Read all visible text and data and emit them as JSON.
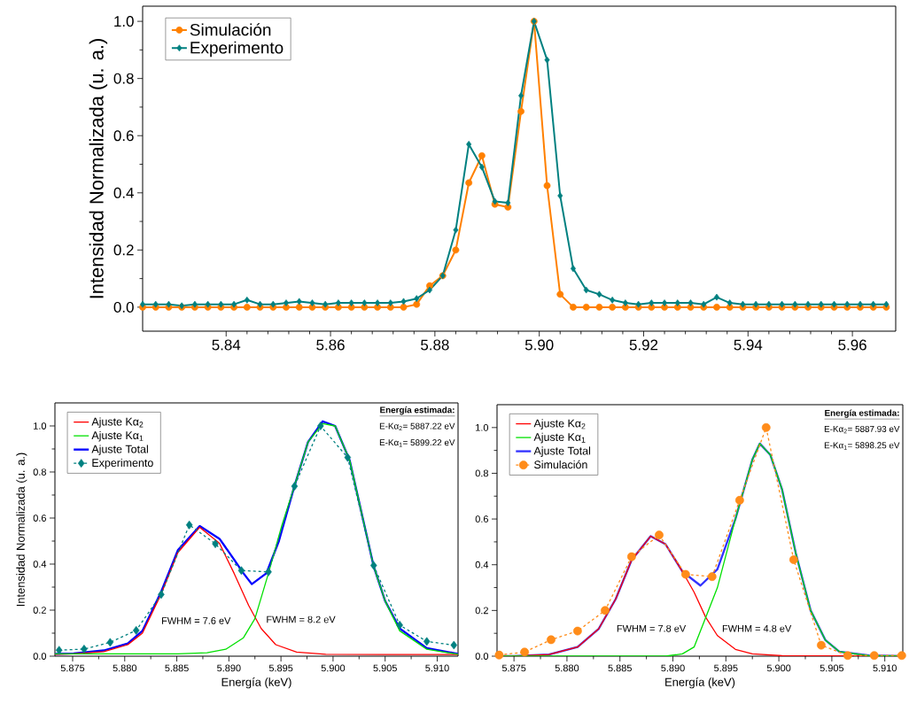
{
  "chart_data": [
    {
      "type": "line",
      "ylabel": "Intensidad Normalizada (u. a.)",
      "legend": "top left",
      "xlim": [
        5.824,
        5.9683
      ],
      "ylim": [
        -0.084,
        1.053
      ],
      "xticks": [
        {
          "value": 5.84,
          "label": "5.84"
        },
        {
          "value": 5.86,
          "label": "5.86"
        },
        {
          "value": 5.88,
          "label": "5.88"
        },
        {
          "value": 5.9,
          "label": "5.90"
        },
        {
          "value": 5.92,
          "label": "5.92"
        },
        {
          "value": 5.94,
          "label": "5.94"
        },
        {
          "value": 5.96,
          "label": "5.96"
        }
      ],
      "yticks": [
        {
          "value": 0,
          "label": "0.0"
        },
        {
          "value": 0.2,
          "label": "0.2"
        },
        {
          "value": 0.4,
          "label": "0.4"
        },
        {
          "value": 0.6,
          "label": "0.6"
        },
        {
          "value": 0.8,
          "label": "0.8"
        },
        {
          "value": 1.0,
          "label": "1.0"
        }
      ],
      "x": [
        5.824,
        5.8265,
        5.829,
        5.8315,
        5.834,
        5.8365,
        5.839,
        5.8415,
        5.844,
        5.8465,
        5.849,
        5.8515,
        5.854,
        5.8565,
        5.859,
        5.8615,
        5.864,
        5.8665,
        5.869,
        5.8715,
        5.874,
        5.8765,
        5.879,
        5.8815,
        5.884,
        5.8865,
        5.889,
        5.8915,
        5.894,
        5.8965,
        5.899,
        5.9015,
        5.904,
        5.9065,
        5.909,
        5.9115,
        5.914,
        5.9165,
        5.919,
        5.9215,
        5.924,
        5.9265,
        5.929,
        5.9315,
        5.934,
        5.9365,
        5.939,
        5.9415,
        5.944,
        5.9465,
        5.949,
        5.9515,
        5.954,
        5.9565,
        5.959,
        5.9615,
        5.964,
        5.9665
      ],
      "series": [
        {
          "name": "Simulación",
          "color": "#ff8000",
          "marker": "circle",
          "line_style": "solid",
          "values": [
            0,
            0,
            0,
            0,
            0,
            0,
            0,
            0,
            0,
            0,
            0,
            0,
            0,
            0,
            0,
            0,
            0,
            0,
            0,
            0,
            0,
            0.01,
            0.075,
            0.11,
            0.2,
            0.435,
            0.53,
            0.36,
            0.35,
            0.685,
            1.0,
            0.425,
            0.045,
            0,
            0,
            0,
            0,
            0,
            0,
            0,
            0,
            0,
            0,
            0,
            0,
            0,
            0,
            0,
            0,
            0,
            0,
            0,
            0,
            0,
            0,
            0,
            0,
            0
          ]
        },
        {
          "name": "Experimento",
          "color": "#008080",
          "marker": "diamond",
          "line_style": "solid",
          "values": [
            0.01,
            0.01,
            0.01,
            0.005,
            0.01,
            0.01,
            0.01,
            0.01,
            0.025,
            0.01,
            0.01,
            0.015,
            0.02,
            0.015,
            0.01,
            0.015,
            0.015,
            0.015,
            0.015,
            0.015,
            0.02,
            0.03,
            0.06,
            0.11,
            0.27,
            0.57,
            0.49,
            0.37,
            0.365,
            0.74,
            1.0,
            0.865,
            0.39,
            0.135,
            0.06,
            0.045,
            0.025,
            0.015,
            0.01,
            0.015,
            0.015,
            0.015,
            0.015,
            0.01,
            0.035,
            0.015,
            0.01,
            0.01,
            0.01,
            0.01,
            0.01,
            0.01,
            0.01,
            0.01,
            0.01,
            0.01,
            0.01,
            0.01
          ]
        }
      ]
    },
    {
      "type": "line",
      "xlabel": "Energía (keV)",
      "ylabel": "Intensidad Normalizada (u. a.)",
      "legend": "top left",
      "xlim": [
        5.8733,
        5.912
      ],
      "ylim": [
        0,
        1.1
      ],
      "xticks": [
        {
          "value": 5.875,
          "label": "5.875"
        },
        {
          "value": 5.88,
          "label": "5.880"
        },
        {
          "value": 5.885,
          "label": "5.885"
        },
        {
          "value": 5.89,
          "label": "5.890"
        },
        {
          "value": 5.895,
          "label": "5.895"
        },
        {
          "value": 5.9,
          "label": "5.900"
        },
        {
          "value": 5.905,
          "label": "5.905"
        },
        {
          "value": 5.91,
          "label": "5.910"
        }
      ],
      "yticks": [
        {
          "value": 0,
          "label": "0.0"
        },
        {
          "value": 0.2,
          "label": "0.2"
        },
        {
          "value": 0.4,
          "label": "0.4"
        },
        {
          "value": 0.6,
          "label": "0.6"
        },
        {
          "value": 0.8,
          "label": "0.8"
        },
        {
          "value": 1.0,
          "label": "1.0"
        }
      ],
      "annotations": [
        "Energía estimada:",
        "E-Kα$_{2}$= 5887.22 eV",
        "E-Kα$_{1}$= 5899.22 eV",
        "FWHM = 7.6 eV",
        "FWHM = 8.2 eV"
      ],
      "series": [
        {
          "name": "Ajuste Kα$_{2}$",
          "color": "#ff0000",
          "marker": "none",
          "line_style": "solid",
          "x": [
            5.8733,
            5.8751,
            5.878,
            5.8803,
            5.8817,
            5.8835,
            5.8851,
            5.8872,
            5.8891,
            5.8905,
            5.8919,
            5.8931,
            5.8945,
            5.8965,
            5.8993,
            5.905,
            5.912
          ],
          "values": [
            0.008,
            0.01,
            0.02,
            0.05,
            0.1,
            0.27,
            0.45,
            0.56,
            0.49,
            0.36,
            0.22,
            0.12,
            0.05,
            0.018,
            0.008,
            0.007,
            0.007
          ]
        },
        {
          "name": "Ajuste Kα$_{1}$",
          "color": "#00e000",
          "marker": "none",
          "line_style": "solid",
          "x": [
            5.8733,
            5.8851,
            5.8879,
            5.8897,
            5.8914,
            5.8925,
            5.8938,
            5.8951,
            5.8963,
            5.8976,
            5.899,
            5.9002,
            5.9016,
            5.9039,
            5.905,
            5.9064,
            5.909,
            5.912
          ],
          "values": [
            0.01,
            0.01,
            0.015,
            0.03,
            0.08,
            0.163,
            0.36,
            0.57,
            0.74,
            0.93,
            1.01,
            1.0,
            0.85,
            0.39,
            0.24,
            0.11,
            0.03,
            0.008
          ]
        },
        {
          "name": "Ajuste Total",
          "color": "#0000ff",
          "marker": "none",
          "line_style": "solid",
          "x": [
            5.8733,
            5.8751,
            5.878,
            5.8803,
            5.8817,
            5.8835,
            5.8851,
            5.8872,
            5.8891,
            5.8905,
            5.8914,
            5.8922,
            5.8936,
            5.8948,
            5.8963,
            5.8976,
            5.899,
            5.9002,
            5.9016,
            5.9039,
            5.905,
            5.9064,
            5.909,
            5.912
          ],
          "values": [
            0.01,
            0.012,
            0.025,
            0.055,
            0.11,
            0.28,
            0.46,
            0.565,
            0.51,
            0.42,
            0.36,
            0.313,
            0.36,
            0.5,
            0.74,
            0.93,
            1.02,
            1.0,
            0.85,
            0.39,
            0.24,
            0.12,
            0.035,
            0.01
          ]
        },
        {
          "name": "Experimento",
          "color": "#008080",
          "marker": "diamond",
          "line_style": "dashed",
          "x": [
            5.8737,
            5.8761,
            5.8786,
            5.8811,
            5.8835,
            5.8862,
            5.8887,
            5.8912,
            5.8938,
            5.8963,
            5.8988,
            5.9014,
            5.9039,
            5.9064,
            5.909,
            5.9116
          ],
          "values": [
            0.026,
            0.031,
            0.06,
            0.112,
            0.268,
            0.57,
            0.488,
            0.372,
            0.366,
            0.738,
            1.0,
            0.863,
            0.394,
            0.135,
            0.064,
            0.048
          ]
        }
      ]
    },
    {
      "type": "line",
      "xlabel": "Energía (keV)",
      "legend": "top left",
      "xlim": [
        5.8734,
        5.9117
      ],
      "ylim": [
        0,
        1.1
      ],
      "xticks": [
        {
          "value": 5.875,
          "label": "5.875"
        },
        {
          "value": 5.88,
          "label": "5.880"
        },
        {
          "value": 5.885,
          "label": "5.885"
        },
        {
          "value": 5.89,
          "label": "5.890"
        },
        {
          "value": 5.895,
          "label": "5.895"
        },
        {
          "value": 5.9,
          "label": "5.900"
        },
        {
          "value": 5.905,
          "label": "5.905"
        },
        {
          "value": 5.91,
          "label": "5.910"
        }
      ],
      "yticks": [
        {
          "value": 0,
          "label": "0.0"
        },
        {
          "value": 0.2,
          "label": "0.2"
        },
        {
          "value": 0.4,
          "label": "0.4"
        },
        {
          "value": 0.6,
          "label": "0.6"
        },
        {
          "value": 0.8,
          "label": "0.8"
        },
        {
          "value": 1.0,
          "label": "1.0"
        }
      ],
      "annotations": [
        "Energía estimada:",
        "E-Kα$_{2}$= 5887.93 eV",
        "E-Kα$_{1}$= 5898.25 eV",
        "FWHM = 7.8 eV",
        "FWHM = 4.8 eV"
      ],
      "series": [
        {
          "name": "Ajuste Kα$_{2}$",
          "color": "#ff0000",
          "marker": "none",
          "line_style": "solid",
          "x": [
            5.8734,
            5.875,
            5.8783,
            5.881,
            5.883,
            5.8846,
            5.8861,
            5.8879,
            5.8893,
            5.8909,
            5.892,
            5.8931,
            5.8942,
            5.8959,
            5.8975,
            5.9003,
            5.9117
          ],
          "values": [
            0,
            0,
            0.007,
            0.04,
            0.12,
            0.25,
            0.42,
            0.525,
            0.49,
            0.37,
            0.28,
            0.17,
            0.09,
            0.03,
            0.01,
            0.002,
            0
          ]
        },
        {
          "name": "Ajuste Kα$_{1}$",
          "color": "#00e000",
          "marker": "none",
          "line_style": "solid",
          "x": [
            5.8734,
            5.8893,
            5.8909,
            5.892,
            5.893,
            5.8942,
            5.8959,
            5.8975,
            5.8982,
            5.8992,
            5.9003,
            5.9016,
            5.903,
            5.9044,
            5.9057,
            5.9085,
            5.9117
          ],
          "values": [
            0,
            0,
            0.01,
            0.04,
            0.158,
            0.3,
            0.6,
            0.86,
            0.93,
            0.88,
            0.73,
            0.45,
            0.2,
            0.07,
            0.02,
            0.002,
            0
          ]
        },
        {
          "name": "Ajuste Total",
          "color": "#3333ff",
          "marker": "none",
          "line_style": "solid",
          "x": [
            5.8734,
            5.875,
            5.8783,
            5.881,
            5.883,
            5.8846,
            5.8861,
            5.8879,
            5.8893,
            5.8909,
            5.8926,
            5.8942,
            5.8959,
            5.8975,
            5.8982,
            5.8992,
            5.9003,
            5.9016,
            5.903,
            5.9044,
            5.9057,
            5.9085,
            5.9117
          ],
          "values": [
            0,
            0,
            0.007,
            0.04,
            0.12,
            0.25,
            0.42,
            0.525,
            0.49,
            0.37,
            0.309,
            0.38,
            0.6,
            0.86,
            0.93,
            0.88,
            0.73,
            0.45,
            0.2,
            0.07,
            0.02,
            0.003,
            0
          ]
        },
        {
          "name": "Simulación",
          "color": "#ff8c1a",
          "marker": "circle",
          "line_style": "dashed",
          "x": [
            5.8736,
            5.876,
            5.8785,
            5.881,
            5.8836,
            5.8861,
            5.8887,
            5.8912,
            5.8937,
            5.8963,
            5.8988,
            5.9014,
            5.904,
            5.9065,
            5.909,
            5.9116
          ],
          "values": [
            0.005,
            0.018,
            0.072,
            0.11,
            0.2,
            0.435,
            0.53,
            0.358,
            0.348,
            0.682,
            1.0,
            0.422,
            0.048,
            0.003,
            0.003,
            0.003
          ]
        }
      ]
    }
  ]
}
